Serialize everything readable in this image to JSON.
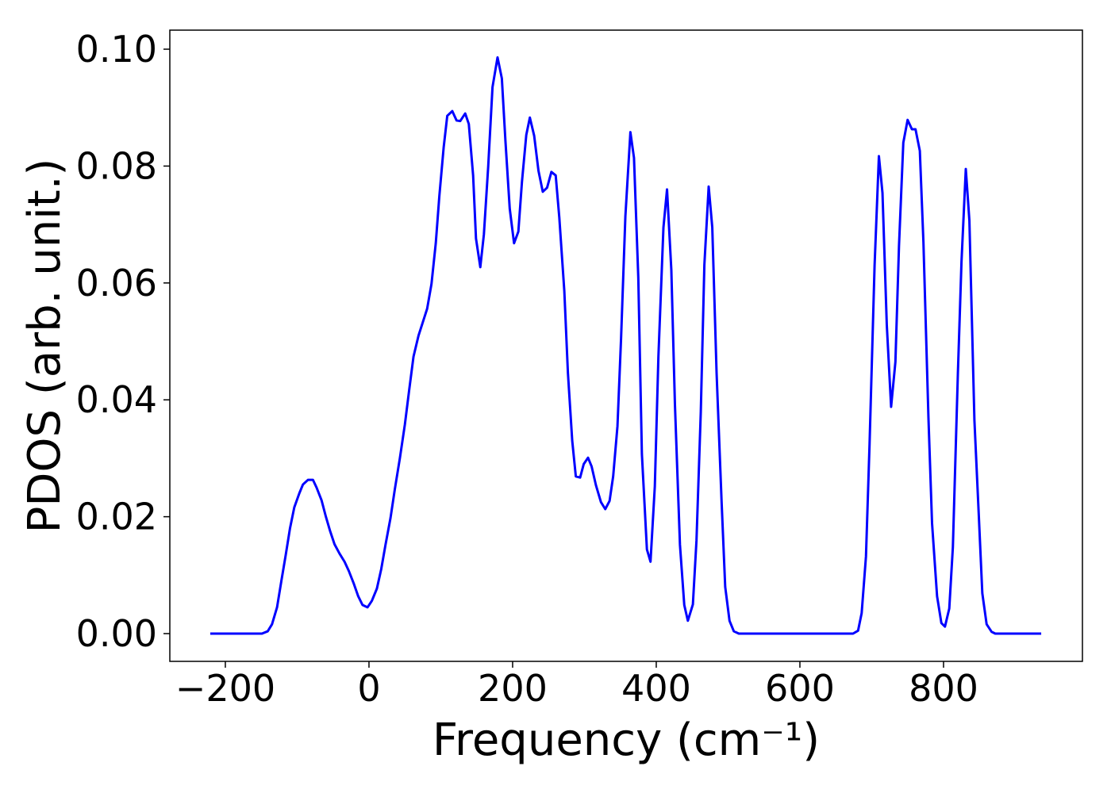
{
  "chart_data": {
    "type": "line",
    "xlabel": "Frequency (cm⁻¹)",
    "ylabel": "PDOS (arb. unit.)",
    "xlim": [
      -277.3,
      993.4
    ],
    "ylim": [
      -0.00475,
      0.10326
    ],
    "xticks": [
      {
        "value": -200,
        "label": "−200"
      },
      0,
      200,
      400,
      600,
      800
    ],
    "yticks": [
      {
        "value": 0,
        "label": "0.00"
      },
      {
        "value": 0.02,
        "label": "0.02"
      },
      {
        "value": 0.04,
        "label": "0.04"
      },
      {
        "value": 0.06,
        "label": "0.06"
      },
      {
        "value": 0.08,
        "label": "0.08"
      },
      {
        "value": 0.1,
        "label": "0.10"
      }
    ],
    "grid": false,
    "series": [
      {
        "color": "#0000ff",
        "x": [
          -221,
          -149,
          -141,
          -135,
          -128,
          -122,
          -116,
          -110,
          -104,
          -97,
          -92,
          -85,
          -78,
          -73,
          -66,
          -60,
          -54,
          -48,
          -41,
          -34,
          -28,
          -21,
          -15,
          -9,
          -2,
          4,
          11,
          17,
          23,
          30,
          36,
          43,
          50,
          56,
          62,
          69,
          75,
          81,
          87,
          93,
          98,
          104,
          109,
          116,
          122,
          127,
          134,
          139,
          145,
          149,
          155,
          160,
          166,
          172,
          179,
          185,
          190,
          196,
          202,
          208,
          213,
          219,
          224,
          230,
          236,
          242,
          248,
          254,
          260,
          265,
          272,
          277,
          283,
          288,
          294,
          299,
          305,
          310,
          316,
          323,
          329,
          335,
          340,
          346,
          351,
          357,
          364,
          369,
          375,
          380,
          387,
          392,
          398,
          403,
          410,
          415,
          421,
          426,
          433,
          439,
          444,
          451,
          456,
          462,
          467,
          473,
          478,
          484,
          491,
          496,
          502,
          508,
          515,
          674,
          681,
          686,
          692,
          697,
          704,
          710,
          715,
          721,
          727,
          733,
          738,
          744,
          750,
          756,
          761,
          767,
          772,
          779,
          784,
          791,
          797,
          802,
          808,
          813,
          820,
          825,
          831,
          836,
          843,
          849,
          854,
          860,
          867,
          872,
          936
        ],
        "values": [
          0,
          0,
          0.0004,
          0.0016,
          0.0045,
          0.009,
          0.0134,
          0.018,
          0.0216,
          0.024,
          0.0255,
          0.0263,
          0.0263,
          0.025,
          0.0228,
          0.02,
          0.0175,
          0.0153,
          0.0137,
          0.0123,
          0.0107,
          0.0085,
          0.0064,
          0.0049,
          0.0045,
          0.0056,
          0.0077,
          0.011,
          0.0152,
          0.0198,
          0.0247,
          0.03,
          0.0358,
          0.0417,
          0.0474,
          0.051,
          0.0533,
          0.0556,
          0.0598,
          0.0668,
          0.0749,
          0.0832,
          0.0886,
          0.0894,
          0.0878,
          0.0877,
          0.089,
          0.0872,
          0.0784,
          0.0676,
          0.0627,
          0.0683,
          0.0799,
          0.0935,
          0.0986,
          0.095,
          0.0843,
          0.0727,
          0.0668,
          0.0688,
          0.0773,
          0.0853,
          0.0883,
          0.0852,
          0.0792,
          0.0756,
          0.0763,
          0.079,
          0.0784,
          0.0712,
          0.0586,
          0.0446,
          0.033,
          0.0269,
          0.0267,
          0.029,
          0.0301,
          0.0286,
          0.0254,
          0.0225,
          0.0213,
          0.0227,
          0.0269,
          0.0355,
          0.0505,
          0.0714,
          0.0858,
          0.0814,
          0.0609,
          0.0307,
          0.0144,
          0.0123,
          0.0252,
          0.0474,
          0.0695,
          0.076,
          0.0622,
          0.0392,
          0.0152,
          0.0049,
          0.0022,
          0.005,
          0.0159,
          0.0379,
          0.0631,
          0.0765,
          0.0695,
          0.0446,
          0.0225,
          0.008,
          0.0022,
          0.0004,
          0,
          0,
          0.0005,
          0.0035,
          0.0132,
          0.0324,
          0.063,
          0.0817,
          0.0754,
          0.0528,
          0.0388,
          0.0465,
          0.0664,
          0.084,
          0.0879,
          0.0863,
          0.0863,
          0.0826,
          0.067,
          0.0369,
          0.0189,
          0.0064,
          0.0018,
          0.0012,
          0.0043,
          0.0148,
          0.0446,
          0.0636,
          0.0795,
          0.0707,
          0.0365,
          0.0205,
          0.0069,
          0.0016,
          0.0003,
          0,
          0
        ]
      }
    ]
  }
}
